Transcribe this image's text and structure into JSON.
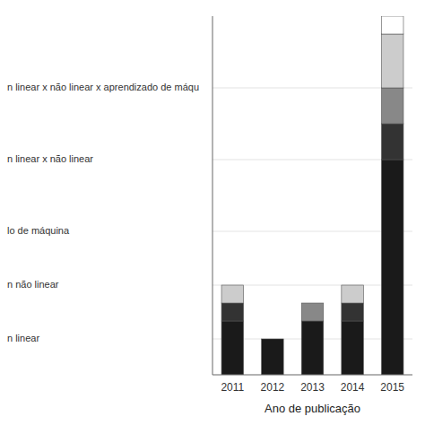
{
  "chart_data": {
    "type": "bar",
    "stacked": true,
    "grid": true,
    "xlabel": "Ano de publicação",
    "categories": [
      "2011",
      "2012",
      "2013",
      "2014",
      "2015"
    ],
    "series": [
      {
        "color": "#1a1a1a",
        "values": [
          3,
          2,
          3,
          3,
          12
        ]
      },
      {
        "color": "#333333",
        "values": [
          1,
          0,
          0,
          1,
          2
        ]
      },
      {
        "color": "#888888",
        "values": [
          0,
          0,
          1,
          0,
          2
        ]
      },
      {
        "color": "#cccccc",
        "values": [
          1,
          0,
          0,
          1,
          3
        ]
      },
      {
        "color": "#ffffff",
        "values": [
          0,
          0,
          0,
          0,
          1
        ]
      }
    ],
    "ylim": [
      0,
      20
    ],
    "yticks": [
      {
        "value": 2,
        "label": "n linear"
      },
      {
        "value": 5,
        "label": "n não linear"
      },
      {
        "value": 8,
        "label": "lo de máquina"
      },
      {
        "value": 12,
        "label": "n linear x não linear"
      },
      {
        "value": 16,
        "label": "n linear x não linear x aprendizado de máqu"
      }
    ]
  }
}
